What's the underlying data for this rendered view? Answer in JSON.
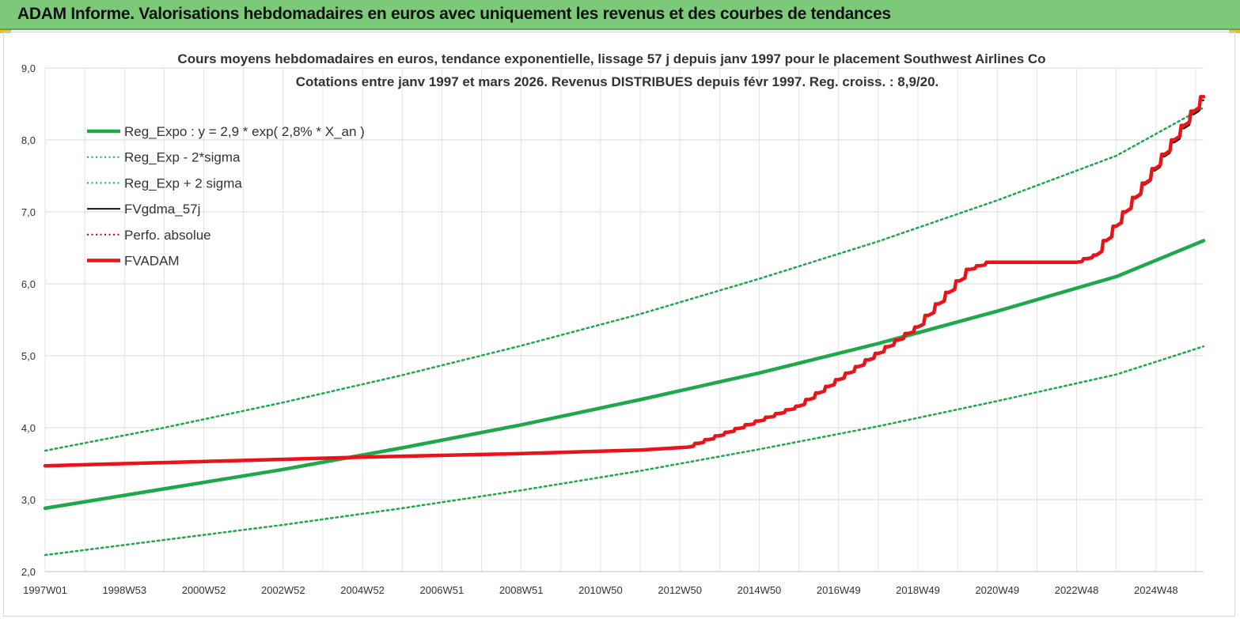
{
  "banner": {
    "title": "ADAM Informe. Valorisations hebdomadaires en euros avec uniquement les revenus et des courbes de tendances"
  },
  "chart_data": {
    "type": "line",
    "title": "Cours moyens hebdomadaires en euros, tendance exponentielle, lissage 57 j depuis janv 1997 pour le placement Southwest Airlines Co",
    "subtitle": "Cotations entre janv 1997 et mars 2026. Revenus DISTRIBUES depuis févr 1997. Reg. croiss. : 8,9/20.",
    "xlabel": "",
    "ylabel": "",
    "x_range": [
      1997.0,
      2026.2
    ],
    "ylim": [
      2.0,
      9.0
    ],
    "y_ticks": [
      "2,0",
      "3,0",
      "4,0",
      "5,0",
      "6,0",
      "7,0",
      "8,0",
      "9,0"
    ],
    "x_ticks": [
      {
        "label": "1997W01",
        "x": 1997.0
      },
      {
        "label": "1998W53",
        "x": 1999.0
      },
      {
        "label": "2000W52",
        "x": 2001.0
      },
      {
        "label": "2002W52",
        "x": 2003.0
      },
      {
        "label": "2004W52",
        "x": 2005.0
      },
      {
        "label": "2006W51",
        "x": 2007.0
      },
      {
        "label": "2008W51",
        "x": 2009.0
      },
      {
        "label": "2010W50",
        "x": 2011.0
      },
      {
        "label": "2012W50",
        "x": 2013.0
      },
      {
        "label": "2014W50",
        "x": 2015.0
      },
      {
        "label": "2016W49",
        "x": 2017.0
      },
      {
        "label": "2018W49",
        "x": 2019.0
      },
      {
        "label": "2020W49",
        "x": 2021.0
      },
      {
        "label": "2022W48",
        "x": 2023.0
      },
      {
        "label": "2024W48",
        "x": 2025.0
      }
    ],
    "grid": "vertical and horizontal",
    "legend_position": "top-left",
    "series": [
      {
        "name": "Reg_Expo : y = 2,9 * exp( 2,8% *  X_an )",
        "color": "#1ea84a",
        "style": "solid-thick",
        "points": [
          [
            1997.0,
            2.88
          ],
          [
            2000.0,
            3.15
          ],
          [
            2003.0,
            3.42
          ],
          [
            2006.0,
            3.72
          ],
          [
            2009.0,
            4.04
          ],
          [
            2012.0,
            4.39
          ],
          [
            2015.0,
            4.76
          ],
          [
            2018.0,
            5.17
          ],
          [
            2021.0,
            5.62
          ],
          [
            2024.0,
            6.1
          ],
          [
            2026.2,
            6.6
          ]
        ]
      },
      {
        "name": "Reg_Exp - 2*sigma",
        "color": "#1ea84a",
        "style": "dotted",
        "points": [
          [
            1997.0,
            2.23
          ],
          [
            2000.0,
            2.44
          ],
          [
            2003.0,
            2.65
          ],
          [
            2006.0,
            2.88
          ],
          [
            2009.0,
            3.13
          ],
          [
            2012.0,
            3.4
          ],
          [
            2015.0,
            3.7
          ],
          [
            2018.0,
            4.02
          ],
          [
            2021.0,
            4.37
          ],
          [
            2024.0,
            4.74
          ],
          [
            2026.2,
            5.13
          ]
        ]
      },
      {
        "name": "Reg_Exp + 2 sigma",
        "color": "#1ea84a",
        "style": "dotted",
        "points": [
          [
            1997.0,
            3.68
          ],
          [
            2000.0,
            4.0
          ],
          [
            2003.0,
            4.35
          ],
          [
            2006.0,
            4.73
          ],
          [
            2009.0,
            5.14
          ],
          [
            2012.0,
            5.58
          ],
          [
            2015.0,
            6.07
          ],
          [
            2018.0,
            6.59
          ],
          [
            2021.0,
            7.16
          ],
          [
            2024.0,
            7.78
          ],
          [
            2026.2,
            8.45
          ]
        ]
      },
      {
        "name": "FVgdma_57j",
        "color": "#111111",
        "style": "solid-thin",
        "points": [
          [
            1997.0,
            3.47
          ],
          [
            2005.0,
            3.59
          ],
          [
            2009.0,
            3.64
          ],
          [
            2012.0,
            3.69
          ],
          [
            2013.2,
            3.72
          ],
          [
            2016.0,
            4.3
          ],
          [
            2019.0,
            5.4
          ],
          [
            2020.3,
            6.2
          ],
          [
            2020.8,
            6.3
          ],
          [
            2023.0,
            6.3
          ],
          [
            2023.5,
            6.4
          ],
          [
            2026.2,
            8.55
          ]
        ]
      },
      {
        "name": "Perfo. absolue",
        "color": "#c00000",
        "style": "dotted",
        "points": []
      },
      {
        "name": "FVADAM",
        "color": "#e8141a",
        "style": "solid-thick",
        "points": [
          [
            1997.0,
            3.47
          ],
          [
            2005.0,
            3.59
          ],
          [
            2009.0,
            3.64
          ],
          [
            2012.0,
            3.69
          ],
          [
            2013.2,
            3.73
          ],
          [
            2016.0,
            4.3
          ],
          [
            2019.0,
            5.4
          ],
          [
            2020.3,
            6.2
          ],
          [
            2020.8,
            6.3
          ],
          [
            2023.0,
            6.3
          ],
          [
            2023.5,
            6.4
          ],
          [
            2026.2,
            8.6
          ]
        ]
      }
    ]
  }
}
